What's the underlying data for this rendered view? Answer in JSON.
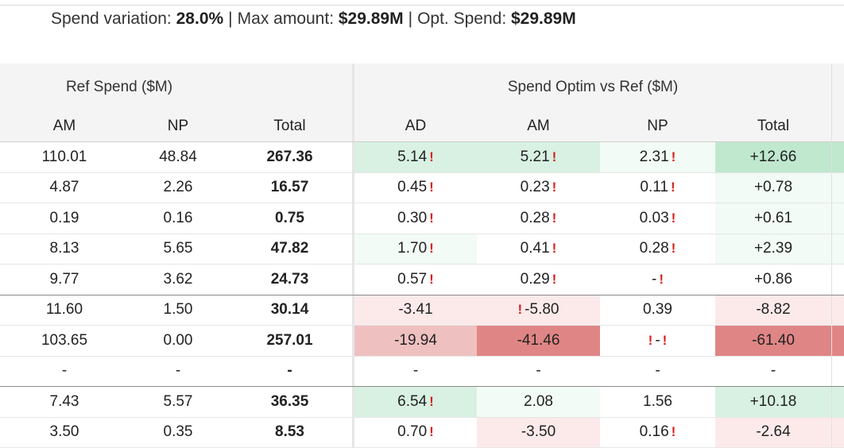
{
  "summary": {
    "spend_variation_label": "Spend variation:",
    "spend_variation_value": "28.0%",
    "separator": "|",
    "max_amount_label": "Max amount:",
    "max_amount_value": "$29.89M",
    "opt_spend_label": "Opt. Spend:",
    "opt_spend_value": "$29.89M"
  },
  "groups": {
    "ref": "Ref Spend ($M)",
    "optim": "Spend Optim vs Ref ($M)"
  },
  "columns": [
    "AM",
    "NP",
    "Total",
    "AD",
    "AM",
    "NP",
    "Total"
  ],
  "warning_glyph": "!",
  "colors": {
    "green_strong": "#bfe8cf",
    "green_medium": "#d8f1e2",
    "green_light": "#f2fbf5",
    "red_light": "#fceaea",
    "red_medium": "#efc0c0",
    "red_strong": "#e08585",
    "warning": "#d62020",
    "header_bg": "#f4f4f4"
  },
  "rows": [
    {
      "am": "110.01",
      "np": "48.84",
      "total": "267.36",
      "ad": "5.14",
      "am2": "5.21",
      "np2": "2.31",
      "tot2": "+12.66",
      "divider": false
    },
    {
      "am": "4.87",
      "np": "2.26",
      "total": "16.57",
      "ad": "0.45",
      "am2": "0.23",
      "np2": "0.11",
      "tot2": "+0.78",
      "divider": false
    },
    {
      "am": "0.19",
      "np": "0.16",
      "total": "0.75",
      "ad": "0.30",
      "am2": "0.28",
      "np2": "0.03",
      "tot2": "+0.61",
      "divider": false
    },
    {
      "am": "8.13",
      "np": "5.65",
      "total": "47.82",
      "ad": "1.70",
      "am2": "0.41",
      "np2": "0.28",
      "tot2": "+2.39",
      "divider": false
    },
    {
      "am": "9.77",
      "np": "3.62",
      "total": "24.73",
      "ad": "0.57",
      "am2": "0.29",
      "np2": "-",
      "tot2": "+0.86",
      "divider": true
    },
    {
      "am": "11.60",
      "np": "1.50",
      "total": "30.14",
      "ad": "-3.41",
      "am2": "-5.80",
      "np2": "0.39",
      "tot2": "-8.82",
      "divider": false
    },
    {
      "am": "103.65",
      "np": "0.00",
      "total": "257.01",
      "ad": "-19.94",
      "am2": "-41.46",
      "np2": "-",
      "tot2": "-61.40",
      "divider": false
    },
    {
      "am": "-",
      "np": "-",
      "total": "-",
      "ad": "-",
      "am2": "-",
      "np2": "-",
      "tot2": "-",
      "divider": true
    },
    {
      "am": "7.43",
      "np": "5.57",
      "total": "36.35",
      "ad": "6.54",
      "am2": "2.08",
      "np2": "1.56",
      "tot2": "+10.18",
      "divider": false
    },
    {
      "am": "3.50",
      "np": "0.35",
      "total": "8.53",
      "ad": "0.70",
      "am2": "-3.50",
      "np2": "0.16",
      "tot2": "-2.64",
      "divider": false
    }
  ]
}
